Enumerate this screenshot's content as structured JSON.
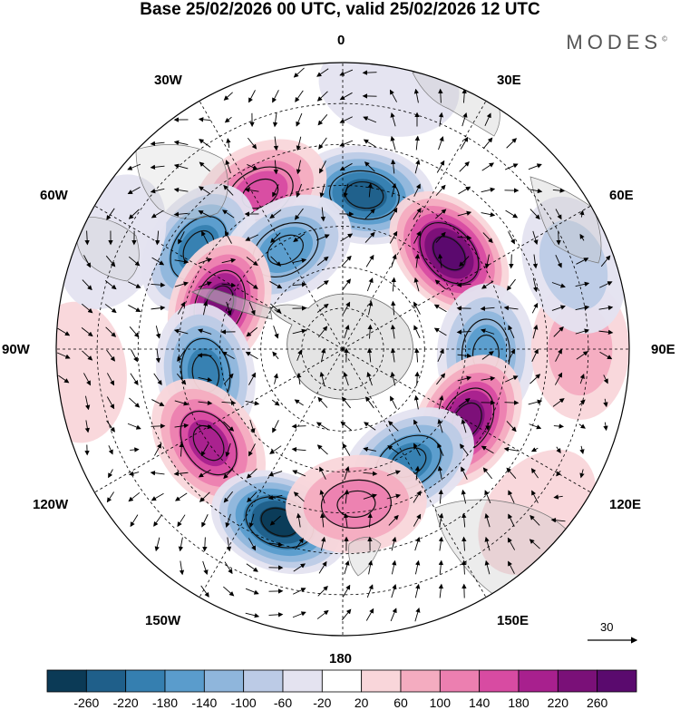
{
  "title": "Base 25/02/2026 00 UTC, valid 25/02/2026 12 UTC",
  "brand": "MODES",
  "brand_mark": "©",
  "longitude_labels": {
    "top": "0",
    "bottom": "180",
    "left": "90W",
    "right": "90E",
    "n30w": "30W",
    "n30e": "30E",
    "n60w": "60W",
    "n60e": "60E",
    "n120w": "120W",
    "n120e": "120E",
    "n150w": "150W",
    "n150e": "150E"
  },
  "vector_reference": "30",
  "colorbar": {
    "labels": [
      "-260",
      "-220",
      "-180",
      "-140",
      "-100",
      "-60",
      "-20",
      "20",
      "60",
      "100",
      "140",
      "180",
      "220",
      "260"
    ],
    "colors": [
      "#0b3a56",
      "#1f5f8a",
      "#357fb0",
      "#5a9ccc",
      "#8fb6dc",
      "#bccbe6",
      "#e4e3f0",
      "#ffffff",
      "#f9d6da",
      "#f4acc0",
      "#ec7fb0",
      "#d84ba2",
      "#a8208e",
      "#7a1078",
      "#5a0a6e"
    ]
  },
  "anomalies": [
    {
      "name": "low-north",
      "value": -220,
      "lon": 8,
      "lat": -52
    },
    {
      "name": "high-northwest",
      "value": 170,
      "lon": -28,
      "lat": -47
    },
    {
      "name": "high-ne",
      "value": 260,
      "lon": 48,
      "lat": -55
    },
    {
      "name": "low-west-upper",
      "value": -180,
      "lon": -55,
      "lat": -47
    },
    {
      "name": "low-west-mid",
      "value": -140,
      "lon": -30,
      "lat": -62
    },
    {
      "name": "high-peninsula",
      "value": 230,
      "lon": -70,
      "lat": -58
    },
    {
      "name": "low-east",
      "value": -150,
      "lon": 92,
      "lat": -55
    },
    {
      "name": "high-right-small",
      "value": 60,
      "lon": 90,
      "lat": -32
    },
    {
      "name": "low-far-east",
      "value": -60,
      "lon": 70,
      "lat": -30
    },
    {
      "name": "low-west-lower",
      "value": -200,
      "lon": -100,
      "lat": -56
    },
    {
      "name": "high-east-lower",
      "value": 230,
      "lon": 120,
      "lat": -55
    },
    {
      "name": "high-sw",
      "value": 200,
      "lon": -125,
      "lat": -50
    },
    {
      "name": "low-south-mid",
      "value": -200,
      "lon": 150,
      "lat": -58
    },
    {
      "name": "low-south-big",
      "value": -260,
      "lon": -160,
      "lat": -45
    },
    {
      "name": "high-south",
      "value": 120,
      "lon": 175,
      "lat": -52
    },
    {
      "name": "low-ne-rim",
      "value": -50,
      "lon": 10,
      "lat": -25
    },
    {
      "name": "high-far-west",
      "value": 40,
      "lon": -95,
      "lat": -25
    },
    {
      "name": "high-se-rim",
      "value": 40,
      "lon": 130,
      "lat": -28
    },
    {
      "name": "low-west-rim",
      "value": -40,
      "lon": -65,
      "lat": -28
    }
  ]
}
